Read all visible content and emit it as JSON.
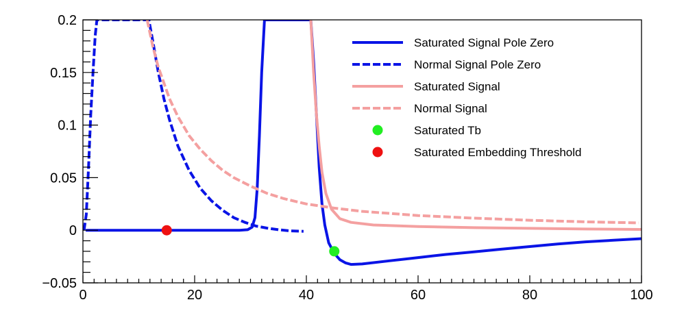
{
  "chart_data": {
    "type": "line",
    "title": "",
    "xlabel": "",
    "ylabel": "",
    "xlim": [
      0,
      100
    ],
    "ylim": [
      -0.05,
      0.2
    ],
    "x_ticks": [
      0,
      20,
      40,
      60,
      80,
      100
    ],
    "y_ticks": [
      -0.05,
      0,
      0.05,
      0.1,
      0.15,
      0.2
    ],
    "x_tick_labels": [
      "0",
      "20",
      "40",
      "60",
      "80",
      "100"
    ],
    "y_tick_labels": [
      "−0.05",
      "0",
      "0.05",
      "0.1",
      "0.15",
      "0.2"
    ],
    "grid": false,
    "legend_position": "top-right",
    "series": [
      {
        "name": "Saturated Signal Pole Zero",
        "style": "solid",
        "color": "#0a14e6",
        "points": [
          [
            0.5,
            0.0
          ],
          [
            1,
            0.0
          ],
          [
            5,
            0.0
          ],
          [
            10,
            0.0
          ],
          [
            15,
            0.0
          ],
          [
            20,
            0.0
          ],
          [
            25,
            0.0
          ],
          [
            28,
            0.0
          ],
          [
            29.5,
            0.0005
          ],
          [
            30.3,
            0.003
          ],
          [
            30.8,
            0.012
          ],
          [
            31.2,
            0.04
          ],
          [
            31.6,
            0.09
          ],
          [
            32,
            0.15
          ],
          [
            32.5,
            0.2
          ],
          [
            40.8,
            0.2
          ],
          [
            41.3,
            0.16
          ],
          [
            41.8,
            0.11
          ],
          [
            42.3,
            0.06
          ],
          [
            42.8,
            0.025
          ],
          [
            43.3,
            0.005
          ],
          [
            44,
            -0.012
          ],
          [
            45,
            -0.022
          ],
          [
            46,
            -0.028
          ],
          [
            47,
            -0.031
          ],
          [
            48,
            -0.0325
          ],
          [
            50,
            -0.032
          ],
          [
            55,
            -0.029
          ],
          [
            60,
            -0.026
          ],
          [
            65,
            -0.023
          ],
          [
            70,
            -0.0205
          ],
          [
            75,
            -0.018
          ],
          [
            80,
            -0.0155
          ],
          [
            85,
            -0.013
          ],
          [
            90,
            -0.011
          ],
          [
            95,
            -0.0095
          ],
          [
            100,
            -0.008
          ]
        ]
      },
      {
        "name": "Normal Signal Pole Zero",
        "style": "dashed",
        "color": "#0a14e6",
        "points": [
          [
            0.2,
            0.0
          ],
          [
            0.6,
            0.015
          ],
          [
            1.0,
            0.06
          ],
          [
            1.4,
            0.11
          ],
          [
            1.8,
            0.15
          ],
          [
            2.2,
            0.185
          ],
          [
            2.5,
            0.2
          ],
          [
            11.8,
            0.2
          ],
          [
            12.5,
            0.18
          ],
          [
            13.5,
            0.15
          ],
          [
            14.5,
            0.125
          ],
          [
            15.5,
            0.105
          ],
          [
            17,
            0.08
          ],
          [
            19,
            0.057
          ],
          [
            21,
            0.04
          ],
          [
            23,
            0.028
          ],
          [
            25,
            0.019
          ],
          [
            27,
            0.012
          ],
          [
            29,
            0.0075
          ],
          [
            31,
            0.004
          ],
          [
            33,
            0.002
          ],
          [
            35,
            0.0005
          ],
          [
            37,
            -0.0005
          ],
          [
            39.5,
            -0.001
          ]
        ]
      },
      {
        "name": "Saturated Signal",
        "style": "solid",
        "color": "#f4a0a0",
        "points": [
          [
            40.8,
            0.2
          ],
          [
            41.3,
            0.15
          ],
          [
            41.8,
            0.11
          ],
          [
            42.3,
            0.08
          ],
          [
            42.8,
            0.055
          ],
          [
            43.5,
            0.035
          ],
          [
            44.5,
            0.02
          ],
          [
            46,
            0.011
          ],
          [
            48,
            0.0075
          ],
          [
            52,
            0.005
          ],
          [
            60,
            0.0035
          ],
          [
            70,
            0.0025
          ],
          [
            80,
            0.0018
          ],
          [
            90,
            0.0012
          ],
          [
            100,
            0.0008
          ]
        ]
      },
      {
        "name": "Normal Signal",
        "style": "dashed",
        "color": "#f4a0a0",
        "points": [
          [
            11.5,
            0.2
          ],
          [
            12.5,
            0.175
          ],
          [
            13.5,
            0.155
          ],
          [
            14.5,
            0.14
          ],
          [
            15.5,
            0.125
          ],
          [
            17,
            0.108
          ],
          [
            19,
            0.09
          ],
          [
            21,
            0.077
          ],
          [
            23,
            0.066
          ],
          [
            25,
            0.057
          ],
          [
            27,
            0.05
          ],
          [
            30,
            0.042
          ],
          [
            33,
            0.035
          ],
          [
            36,
            0.03
          ],
          [
            40,
            0.025
          ],
          [
            45,
            0.021
          ],
          [
            50,
            0.018
          ],
          [
            60,
            0.014
          ],
          [
            70,
            0.0115
          ],
          [
            80,
            0.0095
          ],
          [
            90,
            0.008
          ],
          [
            99.5,
            0.007
          ]
        ]
      },
      {
        "name": "Saturated Tb",
        "style": "marker",
        "color": "#22ee22",
        "points": [
          [
            45,
            -0.02
          ]
        ]
      },
      {
        "name": "Saturated Embedding Threshold",
        "style": "marker",
        "color": "#ee1111",
        "points": [
          [
            15,
            0.0
          ]
        ]
      }
    ]
  }
}
